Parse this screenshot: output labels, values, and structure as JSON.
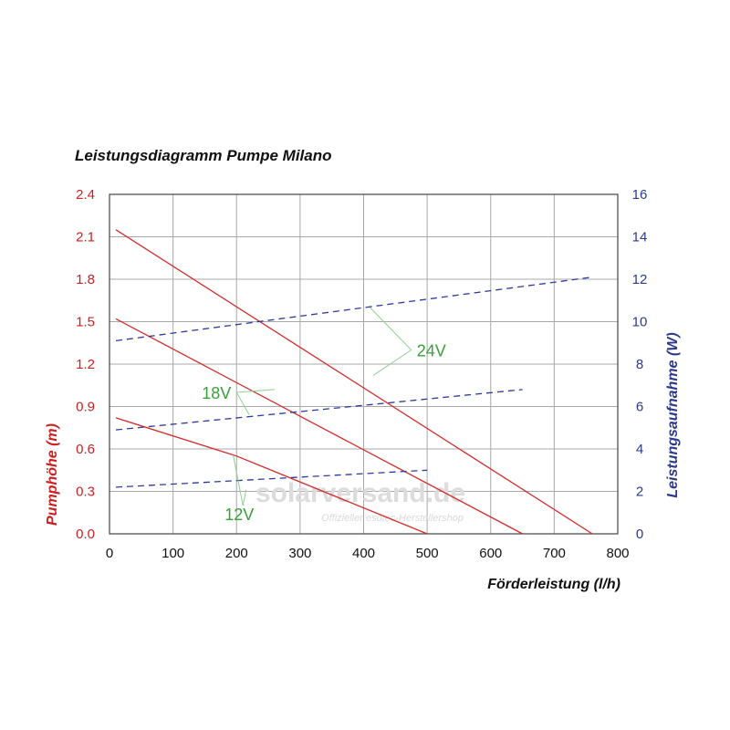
{
  "chart_data": {
    "type": "line",
    "title": "Leistungsdiagramm Pumpe Milano",
    "xlabel": "Förderleistung (l/h)",
    "ylabel_left": "Pumphöhe (m)",
    "ylabel_right": "Leistungsaufnahme (W)",
    "xlim": [
      0,
      800
    ],
    "ylim_left": [
      0,
      2.4
    ],
    "ylim_right": [
      0,
      16
    ],
    "x_ticks": [
      "0",
      "100",
      "200",
      "300",
      "400",
      "500",
      "600",
      "700",
      "800"
    ],
    "y_left_ticks": [
      "0.0",
      "0.3",
      "0.6",
      "0.9",
      "1.2",
      "1.5",
      "1.8",
      "2.1",
      "2.4"
    ],
    "y_right_ticks": [
      "0",
      "2",
      "4",
      "6",
      "8",
      "10",
      "12",
      "14",
      "16"
    ],
    "grid": true,
    "colors": {
      "head": "#d42a2a",
      "power": "#2b3a9c",
      "voltage_label": "#3aa03a",
      "left_axis": "#cc1f1f",
      "right_axis": "#2b3a8c"
    },
    "series": [
      {
        "voltage": "12V",
        "kind": "head",
        "axis": "left",
        "x": [
          10,
          200,
          500
        ],
        "y": [
          0.82,
          0.55,
          0.0
        ]
      },
      {
        "voltage": "18V",
        "kind": "head",
        "axis": "left",
        "x": [
          10,
          650
        ],
        "y": [
          1.52,
          0.0
        ]
      },
      {
        "voltage": "24V",
        "kind": "head",
        "axis": "left",
        "x": [
          10,
          760
        ],
        "y": [
          2.15,
          0.0
        ]
      },
      {
        "voltage": "12V",
        "kind": "power",
        "axis": "right",
        "x": [
          10,
          500
        ],
        "y": [
          2.2,
          3.0
        ]
      },
      {
        "voltage": "18V",
        "kind": "power",
        "axis": "right",
        "x": [
          10,
          650
        ],
        "y": [
          4.9,
          6.8
        ]
      },
      {
        "voltage": "24V",
        "kind": "power",
        "axis": "right",
        "x": [
          10,
          760
        ],
        "y": [
          9.1,
          12.1
        ]
      }
    ],
    "annotations": [
      {
        "text": "24V",
        "points": [
          [
            475,
            1.3
          ],
          [
            410,
            1.6
          ],
          [
            415,
            1.12
          ]
        ]
      },
      {
        "text": "18V",
        "points": [
          [
            200,
            1.0
          ],
          [
            260,
            1.02
          ],
          [
            220,
            0.84
          ]
        ]
      },
      {
        "text": "12V",
        "points": [
          [
            210,
            0.2
          ],
          [
            195,
            0.55
          ],
          [
            215,
            0.31
          ]
        ]
      }
    ]
  },
  "watermark": {
    "brand": "solarversand.de",
    "tagline": "Offizieller esotec-Herstellershop"
  }
}
